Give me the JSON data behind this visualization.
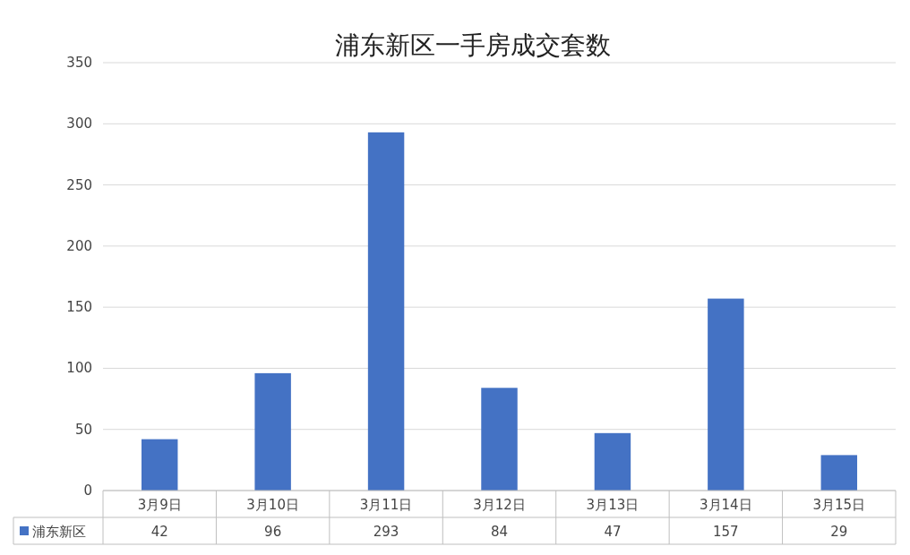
{
  "chart_data": {
    "type": "bar",
    "title": "浦东新区一手房成交套数",
    "categories": [
      "3月9日",
      "3月10日",
      "3月11日",
      "3月12日",
      "3月13日",
      "3月14日",
      "3月15日"
    ],
    "series": [
      {
        "name": "浦东新区",
        "color": "#4472c4",
        "values": [
          42,
          96,
          293,
          84,
          47,
          157,
          29
        ]
      }
    ],
    "ylim": [
      0,
      350
    ],
    "yticks": [
      0,
      50,
      100,
      150,
      200,
      250,
      300,
      350
    ],
    "grid": "y",
    "data_labels": true,
    "legend": "bottom"
  }
}
